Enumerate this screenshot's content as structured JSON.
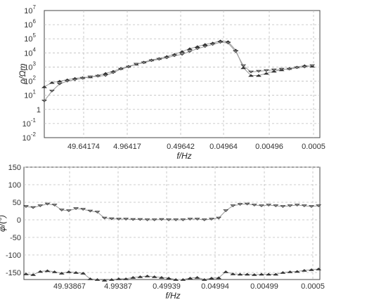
{
  "chart_data": [
    {
      "type": "line",
      "xlabel": "f/Hz",
      "ylabel": "ρ/Ωm",
      "y_scale": "log",
      "ylim_exp": [
        -2,
        7
      ],
      "y_ticks": [
        {
          "b": "10",
          "e": "-2",
          "v": -2
        },
        {
          "b": "10",
          "e": "-1",
          "v": -1
        },
        {
          "b": "1",
          "e": "",
          "v": 0
        },
        {
          "b": "10",
          "e": "1",
          "v": 1
        },
        {
          "b": "10",
          "e": "2",
          "v": 2
        },
        {
          "b": "10",
          "e": "3",
          "v": 3
        },
        {
          "b": "10",
          "e": "4",
          "v": 4
        },
        {
          "b": "10",
          "e": "5",
          "v": 5
        },
        {
          "b": "10",
          "e": "6",
          "v": 6
        },
        {
          "b": "10",
          "e": "7",
          "v": 7
        }
      ],
      "x_ticks": [
        "49.64174",
        "4.96417",
        "0.49642",
        "0.04964",
        "0.00496",
        "0.0005"
      ],
      "grid": true,
      "series": [
        {
          "marker": "triangle-up",
          "points": [
            [
              0.0,
              1.6
            ],
            [
              0.3,
              1.9
            ],
            [
              0.6,
              2.0
            ],
            [
              0.9,
              2.1
            ],
            [
              1.2,
              2.2
            ],
            [
              1.5,
              2.25
            ],
            [
              1.8,
              2.3
            ],
            [
              2.1,
              2.4
            ],
            [
              2.4,
              2.55
            ],
            [
              2.7,
              2.7
            ],
            [
              3.0,
              2.9
            ],
            [
              3.3,
              3.05
            ],
            [
              3.6,
              3.2
            ],
            [
              3.9,
              3.35
            ],
            [
              4.2,
              3.5
            ],
            [
              4.5,
              3.6
            ],
            [
              4.8,
              3.75
            ],
            [
              5.1,
              3.9
            ],
            [
              5.4,
              4.1
            ],
            [
              5.7,
              4.3
            ],
            [
              6.0,
              4.45
            ],
            [
              6.3,
              4.6
            ],
            [
              6.6,
              4.7
            ],
            [
              6.9,
              4.85
            ],
            [
              7.2,
              4.8
            ],
            [
              7.5,
              4.2
            ],
            [
              7.8,
              2.95
            ],
            [
              8.1,
              2.4
            ],
            [
              8.4,
              2.4
            ],
            [
              8.7,
              2.55
            ],
            [
              9.0,
              2.7
            ],
            [
              9.3,
              2.8
            ],
            [
              9.6,
              2.9
            ],
            [
              9.9,
              3.0
            ],
            [
              10.2,
              3.1
            ],
            [
              10.5,
              3.05
            ]
          ]
        },
        {
          "marker": "triangle-down",
          "points": [
            [
              0.0,
              0.6
            ],
            [
              0.3,
              1.3
            ],
            [
              0.6,
              1.8
            ],
            [
              0.9,
              2.0
            ],
            [
              1.2,
              2.1
            ],
            [
              1.5,
              2.2
            ],
            [
              1.8,
              2.3
            ],
            [
              2.1,
              2.35
            ],
            [
              2.4,
              2.4
            ],
            [
              2.7,
              2.6
            ],
            [
              3.0,
              2.85
            ],
            [
              3.3,
              3.0
            ],
            [
              3.6,
              3.2
            ],
            [
              3.9,
              3.3
            ],
            [
              4.2,
              3.45
            ],
            [
              4.5,
              3.55
            ],
            [
              4.8,
              3.65
            ],
            [
              5.1,
              3.8
            ],
            [
              5.4,
              3.9
            ],
            [
              5.7,
              4.1
            ],
            [
              6.0,
              4.3
            ],
            [
              6.3,
              4.45
            ],
            [
              6.6,
              4.6
            ],
            [
              6.9,
              4.75
            ],
            [
              7.2,
              4.7
            ],
            [
              7.5,
              4.1
            ],
            [
              7.8,
              3.1
            ],
            [
              8.1,
              2.65
            ],
            [
              8.4,
              2.7
            ],
            [
              8.7,
              2.75
            ],
            [
              9.0,
              2.8
            ],
            [
              9.3,
              2.85
            ],
            [
              9.6,
              2.85
            ],
            [
              9.9,
              2.95
            ],
            [
              10.2,
              3.0
            ],
            [
              10.5,
              3.1
            ]
          ]
        }
      ]
    },
    {
      "type": "line",
      "xlabel": "f/Hz",
      "ylabel": "φ/(°)",
      "ylim": [
        -170,
        150
      ],
      "y_ticks": [
        150,
        100,
        50,
        0,
        -50,
        -100,
        -150
      ],
      "x_ticks": [
        "49.93867",
        "4.99387",
        "0.49939",
        "0.04994",
        "0.00499",
        "0.0005"
      ],
      "grid": true,
      "series": [
        {
          "marker": "triangle-down",
          "points": [
            [
              0.0,
              38
            ],
            [
              0.25,
              35
            ],
            [
              0.5,
              40
            ],
            [
              0.75,
              45
            ],
            [
              1.0,
              42
            ],
            [
              1.25,
              28
            ],
            [
              1.5,
              26
            ],
            [
              1.75,
              32
            ],
            [
              2.0,
              30
            ],
            [
              2.25,
              25
            ],
            [
              2.5,
              22
            ],
            [
              2.75,
              5
            ],
            [
              3.0,
              3
            ],
            [
              3.25,
              2
            ],
            [
              3.5,
              2
            ],
            [
              3.75,
              1
            ],
            [
              4.0,
              1
            ],
            [
              4.25,
              0
            ],
            [
              4.5,
              0
            ],
            [
              4.75,
              1
            ],
            [
              5.0,
              0
            ],
            [
              5.25,
              0
            ],
            [
              5.5,
              0
            ],
            [
              5.75,
              2
            ],
            [
              6.0,
              2
            ],
            [
              6.25,
              0
            ],
            [
              6.5,
              2
            ],
            [
              6.75,
              5
            ],
            [
              7.0,
              26
            ],
            [
              7.25,
              40
            ],
            [
              7.5,
              44
            ],
            [
              7.75,
              45
            ],
            [
              8.0,
              42
            ],
            [
              8.25,
              40
            ],
            [
              8.5,
              42
            ],
            [
              8.75,
              40
            ],
            [
              9.0,
              38
            ],
            [
              9.25,
              40
            ],
            [
              9.5,
              42
            ],
            [
              9.75,
              40
            ],
            [
              10.0,
              38
            ],
            [
              10.25,
              40
            ]
          ]
        },
        {
          "marker": "triangle-up",
          "points": [
            [
              0.0,
              -154
            ],
            [
              0.25,
              -156
            ],
            [
              0.5,
              -147
            ],
            [
              0.75,
              -145
            ],
            [
              1.0,
              -148
            ],
            [
              1.25,
              -152
            ],
            [
              1.5,
              -148
            ],
            [
              1.75,
              -150
            ],
            [
              2.0,
              -152
            ],
            [
              2.25,
              -168
            ],
            [
              2.5,
              -170
            ],
            [
              2.75,
              -172
            ],
            [
              3.0,
              -170
            ],
            [
              3.25,
              -168
            ],
            [
              3.5,
              -168
            ],
            [
              3.75,
              -164
            ],
            [
              4.0,
              -162
            ],
            [
              4.25,
              -160
            ],
            [
              4.5,
              -162
            ],
            [
              4.75,
              -164
            ],
            [
              5.0,
              -166
            ],
            [
              5.25,
              -170
            ],
            [
              5.5,
              -170
            ],
            [
              5.75,
              -166
            ],
            [
              6.0,
              -164
            ],
            [
              6.25,
              -170
            ],
            [
              6.5,
              -166
            ],
            [
              6.75,
              -165
            ],
            [
              7.0,
              -148
            ],
            [
              7.25,
              -154
            ],
            [
              7.5,
              -155
            ],
            [
              7.75,
              -155
            ],
            [
              8.0,
              -156
            ],
            [
              8.25,
              -155
            ],
            [
              8.5,
              -155
            ],
            [
              8.75,
              -155
            ],
            [
              9.0,
              -150
            ],
            [
              9.25,
              -148
            ],
            [
              9.5,
              -147
            ],
            [
              9.75,
              -144
            ],
            [
              10.0,
              -142
            ],
            [
              10.25,
              -140
            ]
          ]
        }
      ]
    }
  ]
}
